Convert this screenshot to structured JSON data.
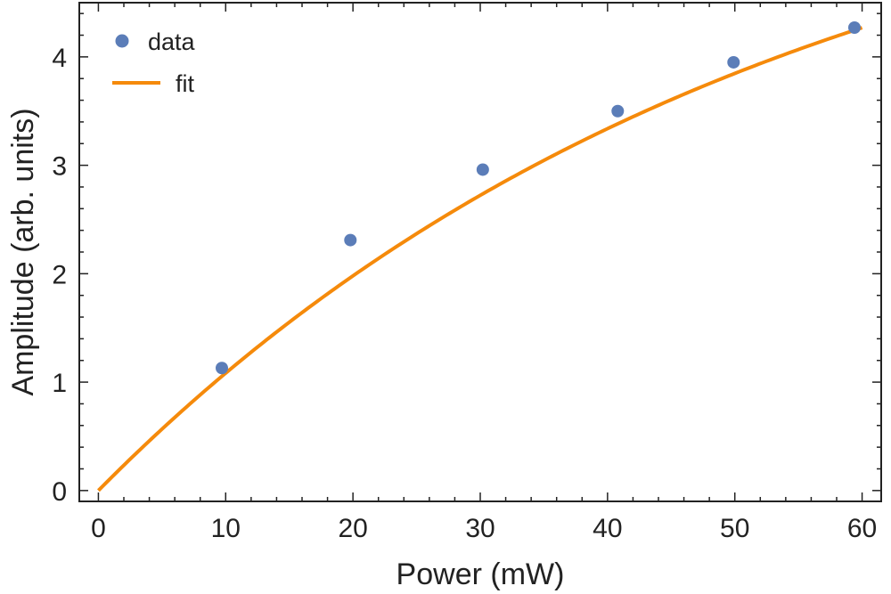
{
  "chart_data": {
    "type": "scatter",
    "xlabel": "Power (mW)",
    "ylabel": "Amplitude (arb. units)",
    "xlim": [
      -1.5,
      61.5
    ],
    "ylim": [
      -0.1,
      4.5
    ],
    "xticks": [
      0,
      10,
      20,
      30,
      40,
      50,
      60
    ],
    "yticks": [
      0,
      1,
      2,
      3,
      4
    ],
    "x_minor_step": 2,
    "y_minor_step": 0.2,
    "grid": false,
    "legend_position": "top-left",
    "series": [
      {
        "name": "data",
        "kind": "points",
        "color": "#5B7DB8",
        "x": [
          9.7,
          19.8,
          30.2,
          40.8,
          49.9,
          59.4
        ],
        "y": [
          1.13,
          2.31,
          2.96,
          3.5,
          3.95,
          4.27
        ]
      },
      {
        "name": "fit",
        "kind": "line",
        "color": "#F58A0B",
        "model": "a*(1-exp(-x/b))",
        "params": {
          "a": 6.3,
          "b": 53
        },
        "x_range": [
          0,
          60
        ]
      }
    ]
  }
}
